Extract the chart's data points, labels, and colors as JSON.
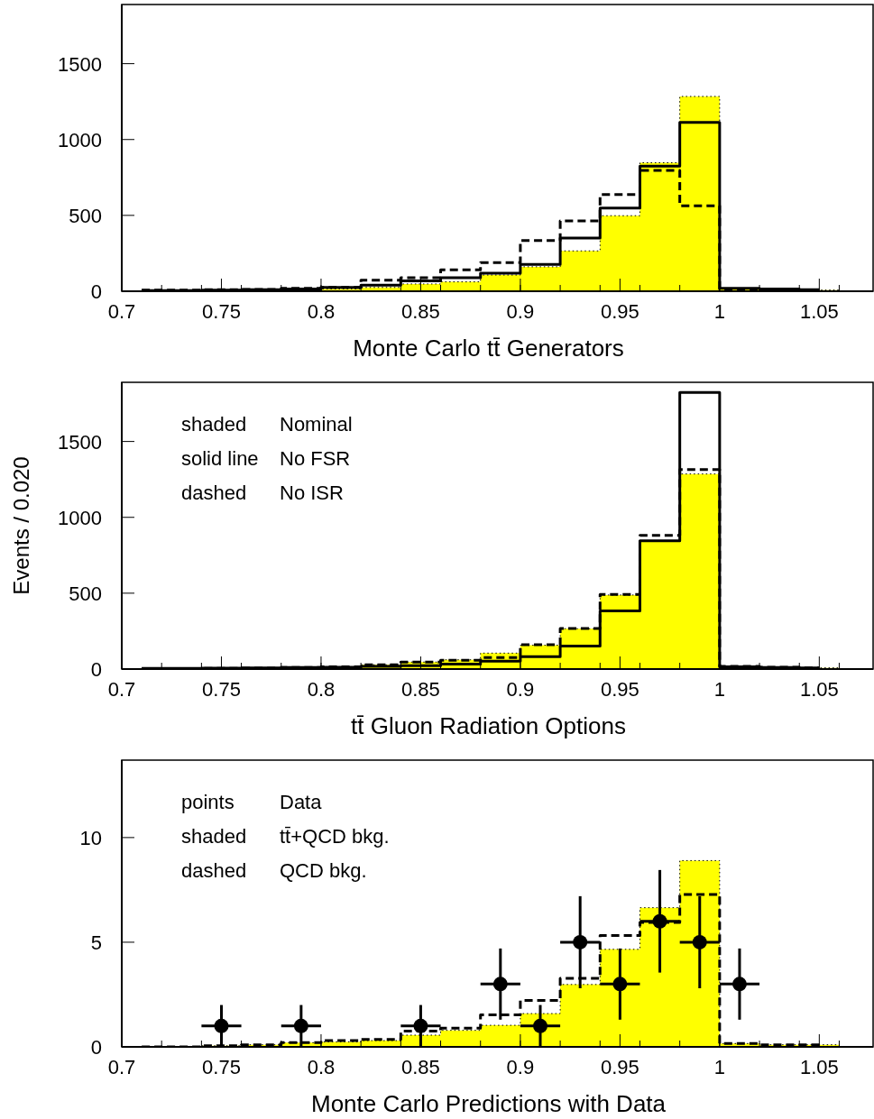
{
  "chart_data": [
    {
      "type": "histogram",
      "xlabel": "Monte Carlo tt̄ Generators",
      "bins": [
        0.7,
        0.72,
        0.74,
        0.76,
        0.78,
        0.8,
        0.82,
        0.84,
        0.86,
        0.88,
        0.9,
        0.92,
        0.94,
        0.96,
        0.98,
        1.0,
        1.02,
        1.04,
        1.06
      ],
      "xlim": [
        0.7,
        1.077
      ],
      "xticks": [
        0.7,
        0.75,
        0.8,
        0.85,
        0.9,
        0.95,
        1,
        1.05
      ],
      "ylim": [
        0,
        1890
      ],
      "yticks": [
        0,
        500,
        1000,
        1500
      ],
      "series": [
        {
          "type": "histogram",
          "color": "#ffff00",
          "values": [
            0,
            0,
            2,
            5,
            10,
            15,
            25,
            48,
            62,
            107,
            161,
            266,
            498,
            847,
            1284,
            15,
            10,
            8
          ]
        },
        {
          "type": "step",
          "color": "#000000",
          "line_style": "solid",
          "x": [
            0.71,
            0.73,
            0.75,
            0.77,
            0.79,
            0.81,
            0.83,
            0.85,
            0.87,
            0.89,
            0.91,
            0.93,
            0.95,
            0.97,
            0.99,
            1.01,
            1.03,
            1.05
          ],
          "values": [
            5,
            5,
            8,
            10,
            15,
            25,
            40,
            69,
            89,
            119,
            177,
            351,
            548,
            825,
            1113,
            20,
            15,
            10
          ]
        },
        {
          "type": "step",
          "color": "#000000",
          "line_style": "dashed",
          "x": [
            0.71,
            0.73,
            0.75,
            0.77,
            0.79,
            0.81,
            0.83,
            0.85,
            0.87,
            0.89,
            0.91,
            0.93,
            0.95,
            0.97,
            0.99,
            1.01,
            1.03,
            1.05
          ],
          "values": [
            8,
            8,
            10,
            12,
            20,
            25,
            73,
            89,
            141,
            189,
            335,
            464,
            637,
            796,
            563,
            15,
            12,
            8
          ]
        }
      ]
    },
    {
      "type": "histogram",
      "xlabel": "tt̄ Gluon Radiation Options",
      "ylabel": "Events / 0.020",
      "bins": [
        0.7,
        0.72,
        0.74,
        0.76,
        0.78,
        0.8,
        0.82,
        0.84,
        0.86,
        0.88,
        0.9,
        0.92,
        0.94,
        0.96,
        0.98,
        1.0,
        1.02,
        1.04,
        1.06
      ],
      "xlim": [
        0.7,
        1.077
      ],
      "xticks": [
        0.7,
        0.75,
        0.8,
        0.85,
        0.9,
        0.95,
        1,
        1.05
      ],
      "ylim": [
        0,
        1890
      ],
      "yticks": [
        0,
        500,
        1000,
        1500
      ],
      "annotations": [
        "shaded",
        "Nominal",
        "solid line",
        "No FSR",
        "dashed",
        "No ISR"
      ],
      "series": [
        {
          "type": "histogram",
          "color": "#ffff00",
          "values": [
            0,
            2,
            4,
            6,
            10,
            15,
            28,
            46,
            61,
            105,
            157,
            266,
            488,
            845,
            1286,
            15,
            10,
            8
          ]
        },
        {
          "type": "step",
          "color": "#000000",
          "line_style": "solid",
          "x": [
            0.71,
            0.73,
            0.75,
            0.77,
            0.79,
            0.81,
            0.83,
            0.85,
            0.87,
            0.89,
            0.91,
            0.93,
            0.95,
            0.97,
            0.99,
            1.01,
            1.03,
            1.05
          ],
          "values": [
            5,
            5,
            6,
            8,
            10,
            12,
            18,
            22,
            32,
            52,
            82,
            151,
            383,
            845,
            1823,
            15,
            10,
            8
          ]
        },
        {
          "type": "step",
          "color": "#000000",
          "line_style": "dashed",
          "x": [
            0.71,
            0.73,
            0.75,
            0.77,
            0.79,
            0.81,
            0.83,
            0.85,
            0.87,
            0.89,
            0.91,
            0.93,
            0.95,
            0.97,
            0.99,
            1.01,
            1.03,
            1.05
          ],
          "values": [
            0,
            2,
            4,
            6,
            10,
            15,
            28,
            46,
            58,
            76,
            161,
            268,
            492,
            881,
            1315,
            18,
            12,
            8
          ]
        }
      ]
    },
    {
      "type": "histogram",
      "xlabel": "Monte Carlo Predictions with Data",
      "bins": [
        0.7,
        0.72,
        0.74,
        0.76,
        0.78,
        0.8,
        0.82,
        0.84,
        0.86,
        0.88,
        0.9,
        0.92,
        0.94,
        0.96,
        0.98,
        1.0,
        1.02,
        1.04,
        1.06
      ],
      "xlim": [
        0.7,
        1.077
      ],
      "xticks": [
        0.7,
        0.75,
        0.8,
        0.85,
        0.9,
        0.95,
        1,
        1.05
      ],
      "ylim": [
        0,
        13.7
      ],
      "yticks": [
        0,
        5,
        10
      ],
      "annotations": [
        "points",
        "Data",
        "shaded",
        "tt̄+QCD bkg.",
        "dashed",
        "QCD bkg."
      ],
      "series": [
        {
          "type": "scatter",
          "color": "#000000",
          "marker": "circle",
          "x": [
            0.75,
            0.79,
            0.85,
            0.89,
            0.91,
            0.93,
            0.95,
            0.97,
            0.99,
            1.01
          ],
          "values": [
            1,
            1,
            1,
            3,
            1,
            5,
            3,
            6,
            5,
            3
          ],
          "errors": [
            1,
            1,
            1,
            1.7,
            1,
            2.2,
            1.7,
            2.45,
            2.2,
            1.7
          ],
          "xerrors": [
            0.01,
            0.01,
            0.01,
            0.01,
            0.01,
            0.01,
            0.01,
            0.01,
            0.01,
            0.01
          ]
        },
        {
          "type": "histogram",
          "color": "#ffff00",
          "values": [
            0,
            0,
            0.05,
            0.1,
            0.2,
            0.24,
            0.3,
            0.56,
            0.79,
            1.03,
            1.59,
            2.98,
            4.66,
            6.65,
            8.9,
            0.16,
            0.1,
            0.1
          ]
        },
        {
          "type": "step",
          "color": "#000000",
          "line_style": "dashed",
          "x": [
            0.71,
            0.73,
            0.75,
            0.77,
            0.79,
            0.81,
            0.83,
            0.85,
            0.87,
            0.89,
            0.91,
            0.93,
            0.95,
            0.97,
            0.99,
            1.01,
            1.03,
            1.05
          ],
          "values": [
            0,
            0,
            0.05,
            0.1,
            0.2,
            0.3,
            0.36,
            0.75,
            0.89,
            1.53,
            2.22,
            3.27,
            5.32,
            5.95,
            7.28,
            0.16,
            0.1,
            0.1
          ]
        }
      ]
    }
  ]
}
